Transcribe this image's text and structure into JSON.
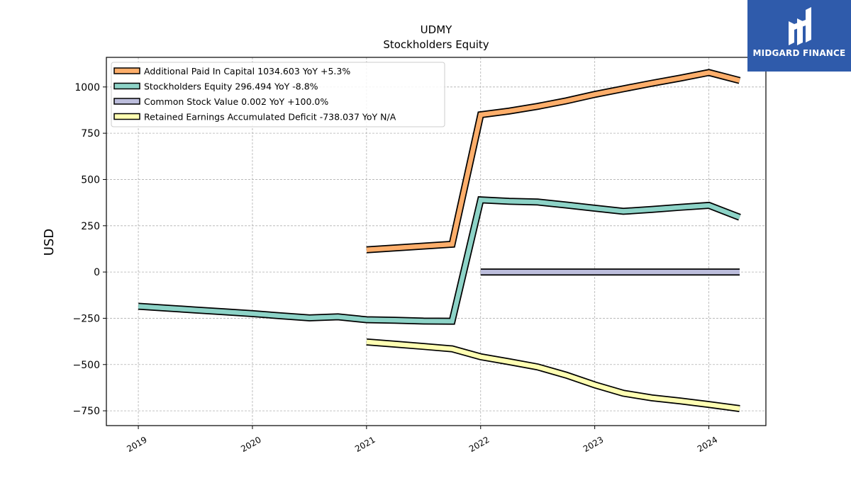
{
  "chart_data": {
    "type": "line",
    "title": "UDMY",
    "subtitle": "Stockholders  Equity",
    "ylabel": "USD",
    "xlabel": "",
    "ylim": [
      -830,
      1160
    ],
    "xlim": [
      2018.72,
      2024.5
    ],
    "yticks": [
      -750,
      -500,
      -250,
      0,
      250,
      500,
      750,
      1000
    ],
    "ytick_labels": [
      "−750",
      "−500",
      "−250",
      "0",
      "250",
      "500",
      "750",
      "1000"
    ],
    "xticks": [
      2019,
      2020,
      2021,
      2022,
      2023,
      2024
    ],
    "xtick_labels": [
      "2019",
      "2020",
      "2021",
      "2022",
      "2023",
      "2024"
    ],
    "grid": true,
    "legend_position": "top-left",
    "series": [
      {
        "name": "Additional Paid In Capital",
        "legend": "Additional Paid In Capital  1034.603 YoY +5.3%",
        "color": "#fdae6b",
        "points": [
          [
            2021.0,
            120
          ],
          [
            2021.75,
            150
          ],
          [
            2022.0,
            850
          ],
          [
            2022.25,
            870
          ],
          [
            2022.5,
            895
          ],
          [
            2022.75,
            925
          ],
          [
            2023.0,
            960
          ],
          [
            2023.25,
            990
          ],
          [
            2023.5,
            1020
          ],
          [
            2023.75,
            1048
          ],
          [
            2024.0,
            1078
          ],
          [
            2024.27,
            1035
          ]
        ]
      },
      {
        "name": "Stockholders Equity",
        "legend": "Stockholders Equity  296.494 YoY -8.8%",
        "color": "#8dd3c7",
        "points": [
          [
            2019.0,
            -185
          ],
          [
            2019.25,
            -195
          ],
          [
            2019.5,
            -205
          ],
          [
            2019.75,
            -215
          ],
          [
            2020.0,
            -225
          ],
          [
            2020.25,
            -237
          ],
          [
            2020.5,
            -248
          ],
          [
            2020.75,
            -242
          ],
          [
            2021.0,
            -258
          ],
          [
            2021.25,
            -261
          ],
          [
            2021.5,
            -265
          ],
          [
            2021.75,
            -266
          ],
          [
            2022.0,
            390
          ],
          [
            2022.25,
            382
          ],
          [
            2022.5,
            378
          ],
          [
            2022.75,
            362
          ],
          [
            2023.0,
            345
          ],
          [
            2023.25,
            328
          ],
          [
            2023.5,
            338
          ],
          [
            2023.75,
            350
          ],
          [
            2024.0,
            360
          ],
          [
            2024.27,
            296
          ]
        ]
      },
      {
        "name": "Common Stock Value",
        "legend": "Common Stock Value  0.002 YoY +100.0%",
        "color": "#bcbddc",
        "points": [
          [
            2022.0,
            0
          ],
          [
            2022.25,
            0
          ],
          [
            2022.5,
            0
          ],
          [
            2022.75,
            0
          ],
          [
            2023.0,
            0
          ],
          [
            2023.25,
            0
          ],
          [
            2023.5,
            0
          ],
          [
            2023.75,
            0
          ],
          [
            2024.0,
            0
          ],
          [
            2024.27,
            0
          ]
        ]
      },
      {
        "name": "Retained Earnings Accumulated Deficit",
        "legend": "Retained Earnings Accumulated Deficit  -738.037 YoY N/A",
        "color": "#ffffb3",
        "points": [
          [
            2021.0,
            -378
          ],
          [
            2021.25,
            -390
          ],
          [
            2021.5,
            -402
          ],
          [
            2021.75,
            -415
          ],
          [
            2022.0,
            -458
          ],
          [
            2022.25,
            -485
          ],
          [
            2022.5,
            -513
          ],
          [
            2022.75,
            -557
          ],
          [
            2023.0,
            -610
          ],
          [
            2023.25,
            -655
          ],
          [
            2023.5,
            -680
          ],
          [
            2023.75,
            -697
          ],
          [
            2024.0,
            -716
          ],
          [
            2024.27,
            -738
          ]
        ]
      }
    ]
  },
  "logo": {
    "text": "MIDGARD FINANCE",
    "icon": "midgard-logo-icon",
    "background": "#2f5bab"
  }
}
